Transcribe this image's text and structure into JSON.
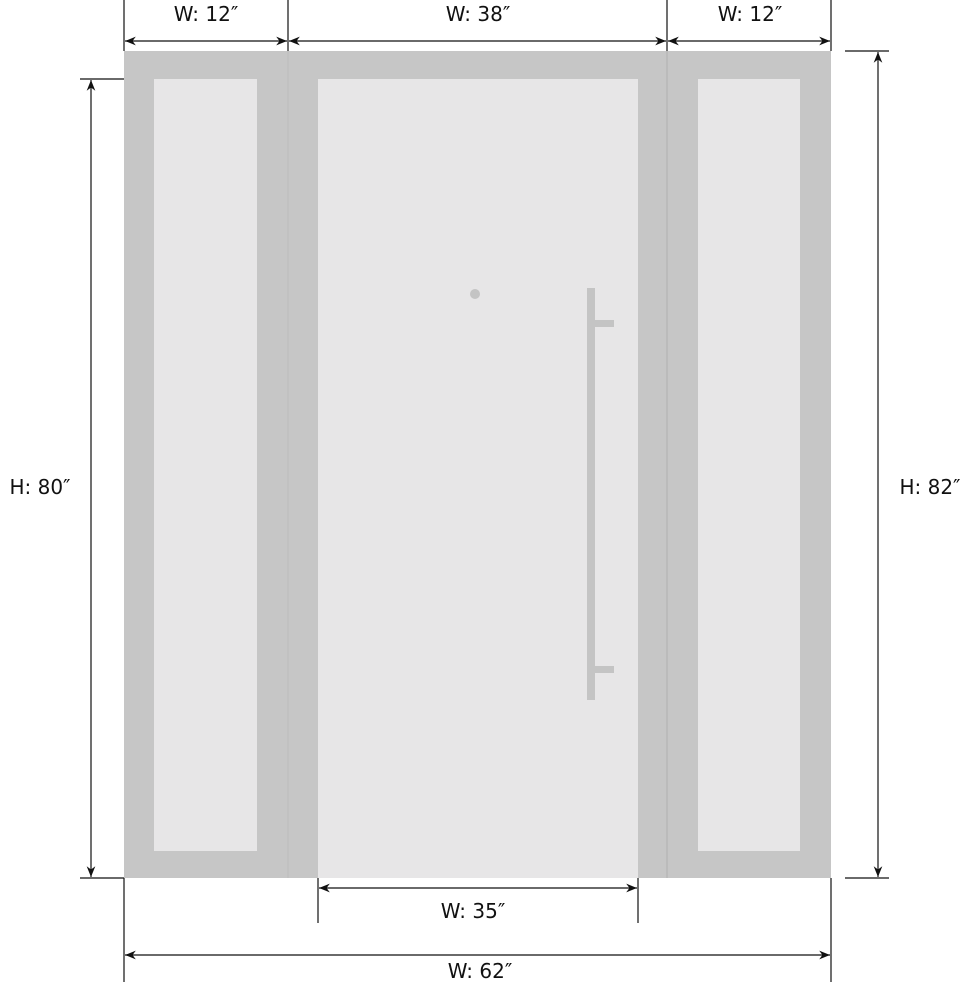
{
  "colors": {
    "frame": "#c6c6c6",
    "glass": "#e7e6e7",
    "hardware": "#c4c4c4",
    "dimension_line": "#111111"
  },
  "dimensions": {
    "left_sidelite_width": "W: 12″",
    "door_width": "W: 38″",
    "right_sidelite_width": "W: 12″",
    "door_height": "H: 80″",
    "overall_height": "H: 82″",
    "door_slab_width": "W: 35″",
    "overall_width": "W: 62″"
  }
}
